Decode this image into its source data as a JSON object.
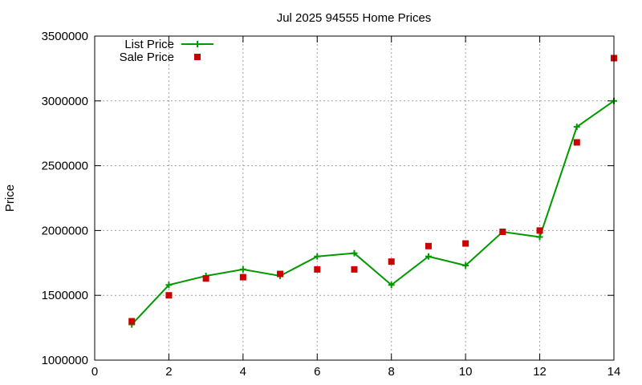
{
  "chart_data": {
    "type": "line",
    "title": "Jul 2025 94555 Home Prices",
    "xlabel": "",
    "ylabel": "Price",
    "xlim": [
      0,
      14
    ],
    "ylim": [
      1000000,
      3500000
    ],
    "x_ticks": [
      0,
      2,
      4,
      6,
      8,
      10,
      12,
      14
    ],
    "y_ticks": [
      1000000,
      1500000,
      2000000,
      2500000,
      3000000,
      3500000
    ],
    "grid": true,
    "legend_position": "top-left",
    "series": [
      {
        "name": "List Price",
        "style": "line+cross",
        "color": "#009900",
        "x": [
          1,
          2,
          3,
          4,
          5,
          6,
          7,
          8,
          9,
          10,
          11,
          12,
          13,
          14
        ],
        "values": [
          1275000,
          1580000,
          1650000,
          1700000,
          1650000,
          1800000,
          1825000,
          1580000,
          1800000,
          1730000,
          1990000,
          1950000,
          2800000,
          3000000
        ]
      },
      {
        "name": "Sale Price",
        "style": "square",
        "color": "#cc0000",
        "x": [
          1,
          2,
          3,
          4,
          5,
          6,
          7,
          8,
          9,
          10,
          11,
          12,
          13,
          14
        ],
        "values": [
          1300000,
          1500000,
          1630000,
          1640000,
          1665000,
          1700000,
          1700000,
          1760000,
          1880000,
          1900000,
          1990000,
          2000000,
          2680000,
          3330000
        ]
      }
    ]
  }
}
